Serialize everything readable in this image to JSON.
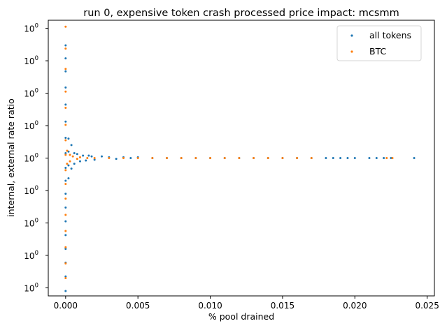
{
  "chart_data": {
    "type": "scatter",
    "title": "run 0, expensive token crash processed price impact: mcsmm",
    "xlabel": "% pool drained",
    "ylabel": "internal, external rate ratio",
    "xlim": [
      -0.0012,
      0.0255
    ],
    "ylim": [
      0.9983,
      1.0017
    ],
    "x_ticks": [
      0.0,
      0.005,
      0.01,
      0.015,
      0.02,
      0.025
    ],
    "x_tick_labels": [
      "0.000",
      "0.005",
      "0.010",
      "0.015",
      "0.020",
      "0.025"
    ],
    "y_ticks": [
      0.9984,
      0.9988,
      0.9992,
      0.9996,
      1.0,
      1.0004,
      1.0008,
      1.0012,
      1.0016
    ],
    "y_tick_labels": [
      "10",
      "10",
      "10",
      "10",
      "10",
      "10",
      "10",
      "10",
      "10"
    ],
    "y_tick_exponent": "0",
    "grid": false,
    "legend": "top-right",
    "series": [
      {
        "name": "all tokens",
        "color": "#1f77b4",
        "description_points": [
          [
            0.0,
            0.99836
          ],
          [
            0.0,
            0.99854
          ],
          [
            0.0,
            0.99871
          ],
          [
            0.0,
            0.99888
          ],
          [
            0.0,
            0.99905
          ],
          [
            0.0,
            0.99922
          ],
          [
            0.0,
            0.99939
          ],
          [
            0.0,
            0.99956
          ],
          [
            0.0,
            0.99972
          ],
          [
            0.0,
            0.99988
          ],
          [
            0.0,
            1.00006
          ],
          [
            0.0,
            1.00025
          ],
          [
            0.0,
            1.00045
          ],
          [
            0.0,
            1.00066
          ],
          [
            0.0,
            1.00087
          ],
          [
            0.0,
            1.00107
          ],
          [
            0.0,
            1.00123
          ],
          [
            0.0,
            1.00139
          ],
          [
            0.0002,
            0.99975
          ],
          [
            0.0002,
            0.99991
          ],
          [
            0.0002,
            1.00008
          ],
          [
            0.0002,
            1.00024
          ],
          [
            0.0004,
            0.99987
          ],
          [
            0.0004,
            1.00016
          ],
          [
            0.0006,
            0.99993
          ],
          [
            0.0006,
            1.00006
          ],
          [
            0.0008,
            1.00005
          ],
          [
            0.001,
            0.99996
          ],
          [
            0.0012,
            1.00003
          ],
          [
            0.0014,
            0.99997
          ],
          [
            0.0016,
            1.00003
          ],
          [
            0.0018,
            1.00002
          ],
          [
            0.002,
            0.99998
          ],
          [
            0.0025,
            1.00002
          ],
          [
            0.003,
            1.00001
          ],
          [
            0.0035,
            0.99999
          ],
          [
            0.004,
            1.00001
          ],
          [
            0.0045,
            1.0
          ],
          [
            0.005,
            1.00001
          ],
          [
            0.006,
            1.0
          ],
          [
            0.007,
            1.0
          ],
          [
            0.008,
            1.0
          ],
          [
            0.009,
            1.0
          ],
          [
            0.01,
            1.0
          ],
          [
            0.011,
            1.0
          ],
          [
            0.012,
            1.0
          ],
          [
            0.013,
            1.0
          ],
          [
            0.014,
            1.0
          ],
          [
            0.015,
            1.0
          ],
          [
            0.016,
            1.0
          ],
          [
            0.017,
            1.0
          ],
          [
            0.018,
            1.0
          ],
          [
            0.0185,
            1.0
          ],
          [
            0.019,
            1.0
          ],
          [
            0.0195,
            1.0
          ],
          [
            0.02,
            1.0
          ],
          [
            0.021,
            1.0
          ],
          [
            0.0215,
            1.0
          ],
          [
            0.022,
            1.0
          ],
          [
            0.0225,
            1.0
          ],
          [
            0.0241,
            1.0
          ]
        ]
      },
      {
        "name": "BTC",
        "color": "#ff7f0e",
        "description_points": [
          [
            0.0,
            0.99852
          ],
          [
            0.0,
            0.9987
          ],
          [
            0.0,
            0.9989
          ],
          [
            0.0,
            0.9991
          ],
          [
            0.0,
            0.9993
          ],
          [
            0.0,
            0.9995
          ],
          [
            0.0,
            0.99968
          ],
          [
            0.0,
            0.99985
          ],
          [
            0.0,
            1.00004
          ],
          [
            0.0,
            1.00022
          ],
          [
            0.0,
            1.00041
          ],
          [
            0.0,
            1.00062
          ],
          [
            0.0,
            1.00082
          ],
          [
            0.0,
            1.0011
          ],
          [
            0.0,
            1.00135
          ],
          [
            0.0,
            1.00162
          ],
          [
            0.0001,
            0.99993
          ],
          [
            0.0001,
            1.00009
          ],
          [
            0.0003,
            0.99996
          ],
          [
            0.0003,
            1.00004
          ],
          [
            0.0005,
            1.00002
          ],
          [
            0.0008,
            0.99999
          ],
          [
            0.001,
            1.00001
          ],
          [
            0.0015,
            1.0
          ],
          [
            0.002,
            1.0
          ],
          [
            0.003,
            1.0
          ],
          [
            0.004,
            1.0
          ],
          [
            0.005,
            1.0
          ],
          [
            0.006,
            1.0
          ],
          [
            0.007,
            1.0
          ],
          [
            0.008,
            1.0
          ],
          [
            0.009,
            1.0
          ],
          [
            0.01,
            1.0
          ],
          [
            0.011,
            1.0
          ],
          [
            0.012,
            1.0
          ],
          [
            0.013,
            1.0
          ],
          [
            0.014,
            1.0
          ],
          [
            0.015,
            1.0
          ],
          [
            0.016,
            1.0
          ],
          [
            0.017,
            1.0
          ],
          [
            0.0222,
            1.0
          ],
          [
            0.0226,
            1.0
          ]
        ]
      }
    ]
  }
}
